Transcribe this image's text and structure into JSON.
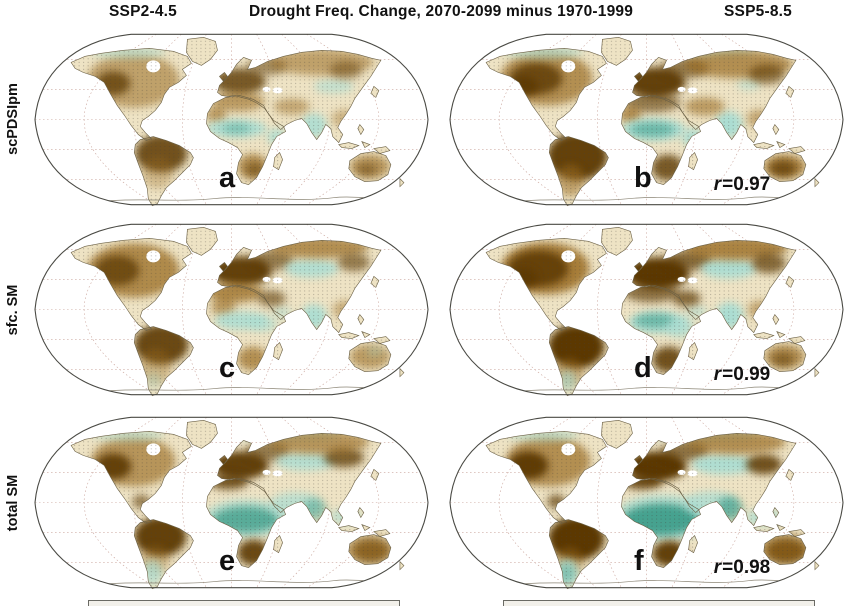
{
  "figure_title": "Drought Freq. Change, 2070-2099 minus 1970-1999",
  "column_headers": [
    "SSP2-4.5",
    "SSP5-8.5"
  ],
  "row_labels": [
    "scPDSIpm",
    "sfc. SM",
    "total SM"
  ],
  "palette": {
    "drying_dark": "#5b3706",
    "drying_mid": "#9a6c22",
    "wetting_light": "#a8ddd3",
    "wetting_strong": "#3f9f8c",
    "base_land": "#eee3c4",
    "coast": "#6b6045",
    "graticule": "#c9a39a",
    "outline": "#4a4a44",
    "stipple": "#44403a"
  },
  "panels": [
    {
      "letter": "a",
      "scenario": "SSP2-4.5",
      "variable": "scPDSIpm",
      "r_symbol": "",
      "r_value": "",
      "blobs": [
        [
          100,
          54,
          46,
          27,
          "mb",
          0.55
        ],
        [
          80,
          57,
          17,
          12,
          "db",
          0.75
        ],
        [
          95,
          26,
          38,
          6,
          "tl",
          0.55
        ],
        [
          128,
          127,
          26,
          19,
          "db",
          0.85
        ],
        [
          124,
          146,
          16,
          16,
          "mb",
          0.35
        ],
        [
          206,
          55,
          26,
          13,
          "db",
          0.8
        ],
        [
          233,
          40,
          20,
          9,
          "db",
          0.5
        ],
        [
          205,
          75,
          26,
          10,
          "mb",
          0.6
        ],
        [
          183,
          88,
          10,
          9,
          "mb",
          0.6
        ],
        [
          203,
          102,
          30,
          9,
          "tl",
          0.9
        ],
        [
          203,
          102,
          14,
          5,
          "ts",
          0.45
        ],
        [
          243,
          110,
          10,
          8,
          "tl",
          0.75
        ],
        [
          219,
          140,
          15,
          13,
          "mb",
          0.7
        ],
        [
          221,
          143,
          9,
          7,
          "db",
          0.5
        ],
        [
          280,
          99,
          13,
          12,
          "tl",
          0.85
        ],
        [
          300,
          60,
          20,
          7,
          "tl",
          0.6
        ],
        [
          288,
          36,
          52,
          13,
          "mb",
          0.55
        ],
        [
          312,
          44,
          16,
          9,
          "db",
          0.45
        ],
        [
          336,
          140,
          20,
          12,
          "mb",
          0.65
        ],
        [
          333,
          143,
          10,
          6,
          "db",
          0.45
        ],
        [
          310,
          92,
          12,
          9,
          "mb",
          0.4
        ],
        [
          258,
          80,
          18,
          8,
          "mb",
          0.5
        ]
      ]
    },
    {
      "letter": "b",
      "scenario": "SSP5-8.5",
      "variable": "scPDSIpm",
      "r_symbol": "r",
      "r_value": "=0.97",
      "blobs": [
        [
          98,
          52,
          46,
          27,
          "mb",
          0.7
        ],
        [
          88,
          52,
          26,
          16,
          "db",
          0.8
        ],
        [
          76,
          60,
          14,
          10,
          "db",
          0.8
        ],
        [
          95,
          26,
          40,
          6,
          "tl",
          0.6
        ],
        [
          262,
          26,
          46,
          6,
          "tl",
          0.5
        ],
        [
          129,
          130,
          30,
          24,
          "db",
          0.95
        ],
        [
          122,
          154,
          14,
          16,
          "mb",
          0.55
        ],
        [
          207,
          56,
          30,
          15,
          "db",
          0.95
        ],
        [
          236,
          42,
          24,
          10,
          "db",
          0.6
        ],
        [
          204,
          76,
          28,
          10,
          "db",
          0.6
        ],
        [
          182,
          88,
          11,
          9,
          "mb",
          0.7
        ],
        [
          205,
          103,
          32,
          11,
          "tl",
          0.95
        ],
        [
          204,
          103,
          22,
          7,
          "ts",
          0.6
        ],
        [
          244,
          111,
          11,
          9,
          "tl",
          0.85
        ],
        [
          219,
          141,
          16,
          13,
          "db",
          0.8
        ],
        [
          280,
          98,
          14,
          13,
          "tl",
          0.95
        ],
        [
          300,
          58,
          12,
          6,
          "tl",
          0.5
        ],
        [
          290,
          38,
          54,
          14,
          "mb",
          0.7
        ],
        [
          318,
          48,
          18,
          10,
          "db",
          0.6
        ],
        [
          336,
          140,
          21,
          12,
          "mb",
          0.8
        ],
        [
          334,
          142,
          13,
          8,
          "db",
          0.7
        ],
        [
          310,
          92,
          12,
          9,
          "mb",
          0.5
        ],
        [
          256,
          80,
          20,
          9,
          "mb",
          0.6
        ]
      ]
    },
    {
      "letter": "c",
      "scenario": "SSP2-4.5",
      "variable": "sfc. SM",
      "r_symbol": "",
      "r_value": "",
      "blobs": [
        [
          100,
          54,
          46,
          27,
          "mb",
          0.75
        ],
        [
          84,
          54,
          22,
          15,
          "db",
          0.75
        ],
        [
          128,
          128,
          27,
          20,
          "db",
          0.9
        ],
        [
          122,
          150,
          16,
          18,
          "mb",
          0.4
        ],
        [
          120,
          164,
          8,
          8,
          "tl",
          0.35
        ],
        [
          208,
          55,
          30,
          15,
          "db",
          0.95
        ],
        [
          238,
          44,
          22,
          10,
          "db",
          0.6
        ],
        [
          202,
          76,
          28,
          10,
          "mb",
          0.75
        ],
        [
          190,
          90,
          12,
          10,
          "mb",
          0.6
        ],
        [
          208,
          104,
          27,
          9,
          "tl",
          0.85
        ],
        [
          230,
          108,
          14,
          7,
          "tl",
          0.6
        ],
        [
          248,
          96,
          10,
          6,
          "tl",
          0.5
        ],
        [
          280,
          100,
          13,
          12,
          "tl",
          0.9
        ],
        [
          278,
          52,
          27,
          9,
          "tl",
          0.85
        ],
        [
          238,
          82,
          14,
          8,
          "db",
          0.6
        ],
        [
          219,
          142,
          15,
          12,
          "mb",
          0.7
        ],
        [
          285,
          31,
          50,
          11,
          "mb",
          0.7
        ],
        [
          320,
          46,
          16,
          9,
          "db",
          0.6
        ],
        [
          336,
          140,
          20,
          12,
          "mb",
          0.6
        ],
        [
          341,
          135,
          8,
          5,
          "tl",
          0.35
        ],
        [
          311,
          93,
          12,
          9,
          "mb",
          0.45
        ]
      ]
    },
    {
      "letter": "d",
      "scenario": "SSP5-8.5",
      "variable": "sfc. SM",
      "r_symbol": "r",
      "r_value": "=0.99",
      "blobs": [
        [
          97,
          52,
          44,
          26,
          "mb",
          0.85
        ],
        [
          90,
          52,
          30,
          18,
          "db",
          0.85
        ],
        [
          76,
          62,
          13,
          10,
          "db",
          0.8
        ],
        [
          128,
          130,
          28,
          22,
          "db",
          1
        ],
        [
          121,
          156,
          14,
          14,
          "mb",
          0.5
        ],
        [
          119,
          164,
          9,
          10,
          "tl",
          0.6
        ],
        [
          209,
          57,
          32,
          16,
          "db",
          1
        ],
        [
          240,
          44,
          24,
          10,
          "db",
          0.7
        ],
        [
          203,
          76,
          28,
          10,
          "db",
          0.65
        ],
        [
          210,
          106,
          30,
          11,
          "tl",
          0.9
        ],
        [
          206,
          104,
          20,
          7,
          "ts",
          0.6
        ],
        [
          232,
          112,
          14,
          9,
          "tl",
          0.7
        ],
        [
          281,
          99,
          14,
          13,
          "tl",
          0.95
        ],
        [
          280,
          52,
          28,
          10,
          "tl",
          0.9
        ],
        [
          248,
          95,
          11,
          6,
          "tl",
          0.55
        ],
        [
          238,
          82,
          14,
          8,
          "db",
          0.7
        ],
        [
          220,
          143,
          16,
          13,
          "db",
          0.85
        ],
        [
          287,
          32,
          52,
          12,
          "mb",
          0.8
        ],
        [
          320,
          47,
          17,
          10,
          "db",
          0.7
        ],
        [
          336,
          140,
          20,
          12,
          "mb",
          0.7
        ],
        [
          334,
          143,
          11,
          7,
          "db",
          0.5
        ],
        [
          311,
          93,
          12,
          9,
          "mb",
          0.5
        ]
      ]
    },
    {
      "letter": "e",
      "scenario": "SSP2-4.5",
      "variable": "total SM",
      "r_symbol": "",
      "r_value": "",
      "blobs": [
        [
          100,
          52,
          42,
          25,
          "mb",
          0.65
        ],
        [
          80,
          57,
          18,
          13,
          "db",
          0.9
        ],
        [
          108,
          92,
          9,
          7,
          "db",
          0.6
        ],
        [
          95,
          26,
          36,
          6,
          "tl",
          0.5
        ],
        [
          252,
          26,
          55,
          6,
          "tl",
          0.5
        ],
        [
          127,
          127,
          26,
          20,
          "db",
          0.95
        ],
        [
          122,
          150,
          14,
          14,
          "mb",
          0.4
        ],
        [
          119,
          163,
          10,
          12,
          "tl",
          0.7
        ],
        [
          207,
          56,
          28,
          14,
          "db",
          0.95
        ],
        [
          195,
          72,
          20,
          8,
          "db",
          0.8
        ],
        [
          234,
          42,
          22,
          10,
          "db",
          0.6
        ],
        [
          212,
          109,
          42,
          19,
          "tl",
          0.7
        ],
        [
          212,
          110,
          33,
          13,
          "ts",
          0.8
        ],
        [
          262,
          95,
          26,
          12,
          "tl",
          0.7
        ],
        [
          281,
          100,
          12,
          11,
          "ts",
          0.5
        ],
        [
          272,
          52,
          30,
          9,
          "tl",
          0.8
        ],
        [
          312,
          107,
          16,
          8,
          "tl",
          0.6
        ],
        [
          220,
          143,
          16,
          13,
          "db",
          0.9
        ],
        [
          310,
          48,
          20,
          10,
          "db",
          0.75
        ],
        [
          285,
          33,
          50,
          12,
          "mb",
          0.65
        ],
        [
          337,
          141,
          18,
          11,
          "db",
          0.8
        ],
        [
          336,
          140,
          24,
          14,
          "mb",
          0.6
        ]
      ]
    },
    {
      "letter": "f",
      "scenario": "SSP5-8.5",
      "variable": "total SM",
      "r_symbol": "r",
      "r_value": "=0.98",
      "blobs": [
        [
          100,
          52,
          42,
          25,
          "mb",
          0.7
        ],
        [
          80,
          56,
          20,
          14,
          "db",
          0.95
        ],
        [
          108,
          92,
          9,
          7,
          "db",
          0.7
        ],
        [
          95,
          26,
          36,
          6,
          "tl",
          0.55
        ],
        [
          255,
          26,
          55,
          6,
          "tl",
          0.55
        ],
        [
          128,
          129,
          28,
          22,
          "db",
          1
        ],
        [
          121,
          152,
          14,
          14,
          "mb",
          0.45
        ],
        [
          119,
          163,
          11,
          13,
          "tl",
          0.85
        ],
        [
          118,
          164,
          8,
          9,
          "ts",
          0.4
        ],
        [
          208,
          57,
          30,
          15,
          "db",
          1
        ],
        [
          194,
          72,
          20,
          8,
          "db",
          0.85
        ],
        [
          236,
          42,
          24,
          10,
          "db",
          0.65
        ],
        [
          214,
          108,
          48,
          23,
          "tl",
          0.75
        ],
        [
          212,
          110,
          38,
          16,
          "ts",
          0.95
        ],
        [
          262,
          94,
          26,
          12,
          "tl",
          0.75
        ],
        [
          281,
          99,
          13,
          12,
          "ts",
          0.7
        ],
        [
          275,
          55,
          32,
          10,
          "tl",
          0.9
        ],
        [
          315,
          108,
          18,
          9,
          "tl",
          0.7
        ],
        [
          221,
          144,
          17,
          13,
          "db",
          0.95
        ],
        [
          315,
          55,
          18,
          10,
          "db",
          0.85
        ],
        [
          287,
          33,
          50,
          12,
          "mb",
          0.7
        ],
        [
          337,
          141,
          20,
          12,
          "db",
          0.95
        ],
        [
          336,
          139,
          26,
          15,
          "mb",
          0.6
        ]
      ]
    }
  ]
}
